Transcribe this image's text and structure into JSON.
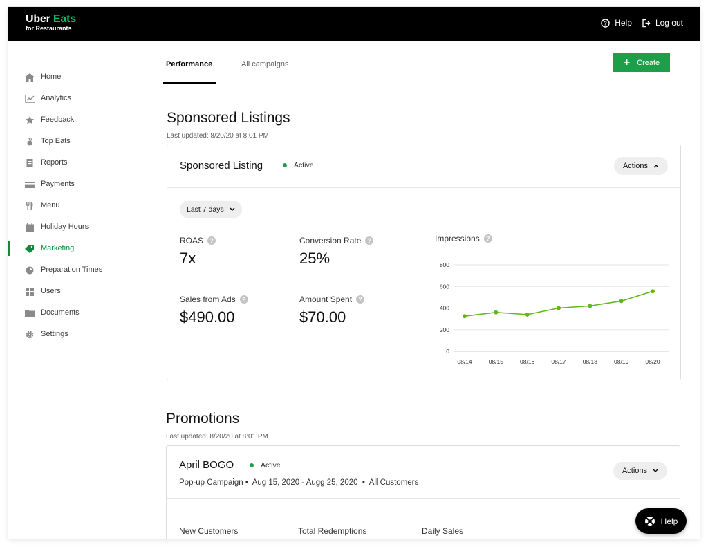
{
  "brand": {
    "line1_a": "Uber",
    "line1_b": "Eats",
    "line2": "for Restaurants"
  },
  "topbar": {
    "help_label": "Help",
    "logout_label": "Log out"
  },
  "sidebar": {
    "items": [
      {
        "label": "Home",
        "icon": "home-icon"
      },
      {
        "label": "Analytics",
        "icon": "analytics-icon"
      },
      {
        "label": "Feedback",
        "icon": "star-icon"
      },
      {
        "label": "Top Eats",
        "icon": "medal-icon"
      },
      {
        "label": "Reports",
        "icon": "report-icon"
      },
      {
        "label": "Payments",
        "icon": "card-icon"
      },
      {
        "label": "Menu",
        "icon": "utensils-icon"
      },
      {
        "label": "Holiday Hours",
        "icon": "calendar-icon"
      },
      {
        "label": "Marketing",
        "icon": "tag-icon",
        "active": true
      },
      {
        "label": "Preparation Times",
        "icon": "timer-icon"
      },
      {
        "label": "Users",
        "icon": "users-icon"
      },
      {
        "label": "Documents",
        "icon": "folder-icon"
      },
      {
        "label": "Settings",
        "icon": "gear-icon"
      }
    ]
  },
  "tabs": [
    {
      "label": "Performance",
      "active": true
    },
    {
      "label": "All campaigns",
      "active": false
    }
  ],
  "create_label": "Create",
  "sponsored": {
    "title": "Sponsored Listings",
    "updated": "Last updated: 8/20/20 at 8:01 PM",
    "card_title": "Sponsored Listing",
    "status": "Active",
    "actions_label": "Actions",
    "range_label": "Last 7 days",
    "metrics": {
      "roas_label": "ROAS",
      "roas_value": "7x",
      "conv_label": "Conversion Rate",
      "conv_value": "25%",
      "sales_label": "Sales from Ads",
      "sales_value": "$490.00",
      "spent_label": "Amount Spent",
      "spent_value": "$70.00"
    },
    "chart_title": "Impressions"
  },
  "chart_data": {
    "type": "line",
    "title": "Impressions",
    "categories": [
      "08/14",
      "08/15",
      "08/16",
      "08/17",
      "08/18",
      "08/19",
      "08/20"
    ],
    "values": [
      325,
      360,
      340,
      400,
      420,
      465,
      555
    ],
    "yticks": [
      0,
      200,
      400,
      600,
      800
    ],
    "ylim": [
      0,
      800
    ],
    "grid": true,
    "color": "#5fb817"
  },
  "promotions": {
    "title": "Promotions",
    "updated": "Last updated: 8/20/20 at 8:01 PM",
    "card_title": "April BOGO",
    "status": "Active",
    "actions_label": "Actions",
    "campaign_type": "Pop-up Campaign",
    "dates": "Aug 15, 2020 - Augg 25, 2020",
    "audience": "All Customers",
    "metrics": [
      "New Customers",
      "Total Redemptions",
      "Daily Sales"
    ]
  },
  "help_fab_label": "Help"
}
